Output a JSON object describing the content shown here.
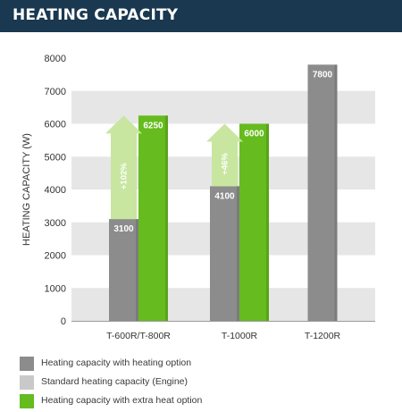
{
  "header": {
    "title": "HEATING CAPACITY"
  },
  "chart_data": {
    "type": "bar",
    "ylabel": "HEATING CAPACITY (W)",
    "xlabel": "",
    "ylim": [
      0,
      8000
    ],
    "yticks": [
      0,
      1000,
      2000,
      3000,
      4000,
      5000,
      6000,
      7000,
      8000
    ],
    "categories": [
      "T-600R/T-800R",
      "T-1000R",
      "T-1200R"
    ],
    "series": [
      {
        "name": "Heating capacity with heating option",
        "values": [
          3100,
          4100,
          7800
        ],
        "color": "#8c8c8c"
      },
      {
        "name": "Standard heating capacity (Engine)",
        "values": [
          null,
          null,
          null
        ],
        "color": "#c9c9c9"
      },
      {
        "name": "Heating capacity with extra heat option",
        "values": [
          6250,
          6000,
          null
        ],
        "color": "#66bb1e"
      }
    ],
    "bar_labels": {
      "grey": [
        "3100",
        "4100",
        "7800"
      ],
      "green": [
        "6250",
        "6000",
        null
      ]
    },
    "annotations": [
      {
        "category": "T-600R/T-800R",
        "text": "+102%"
      },
      {
        "category": "T-1000R",
        "text": "+46%"
      }
    ],
    "arrow_color": "#c8e6a0",
    "grid": true
  },
  "legend": {
    "items": [
      {
        "label": "Heating capacity with heating option",
        "color": "#8c8c8c"
      },
      {
        "label": "Standard heating capacity (Engine)",
        "color": "#c9c9c9"
      },
      {
        "label": "Heating capacity with extra heat option",
        "color": "#66bb1e"
      }
    ]
  }
}
